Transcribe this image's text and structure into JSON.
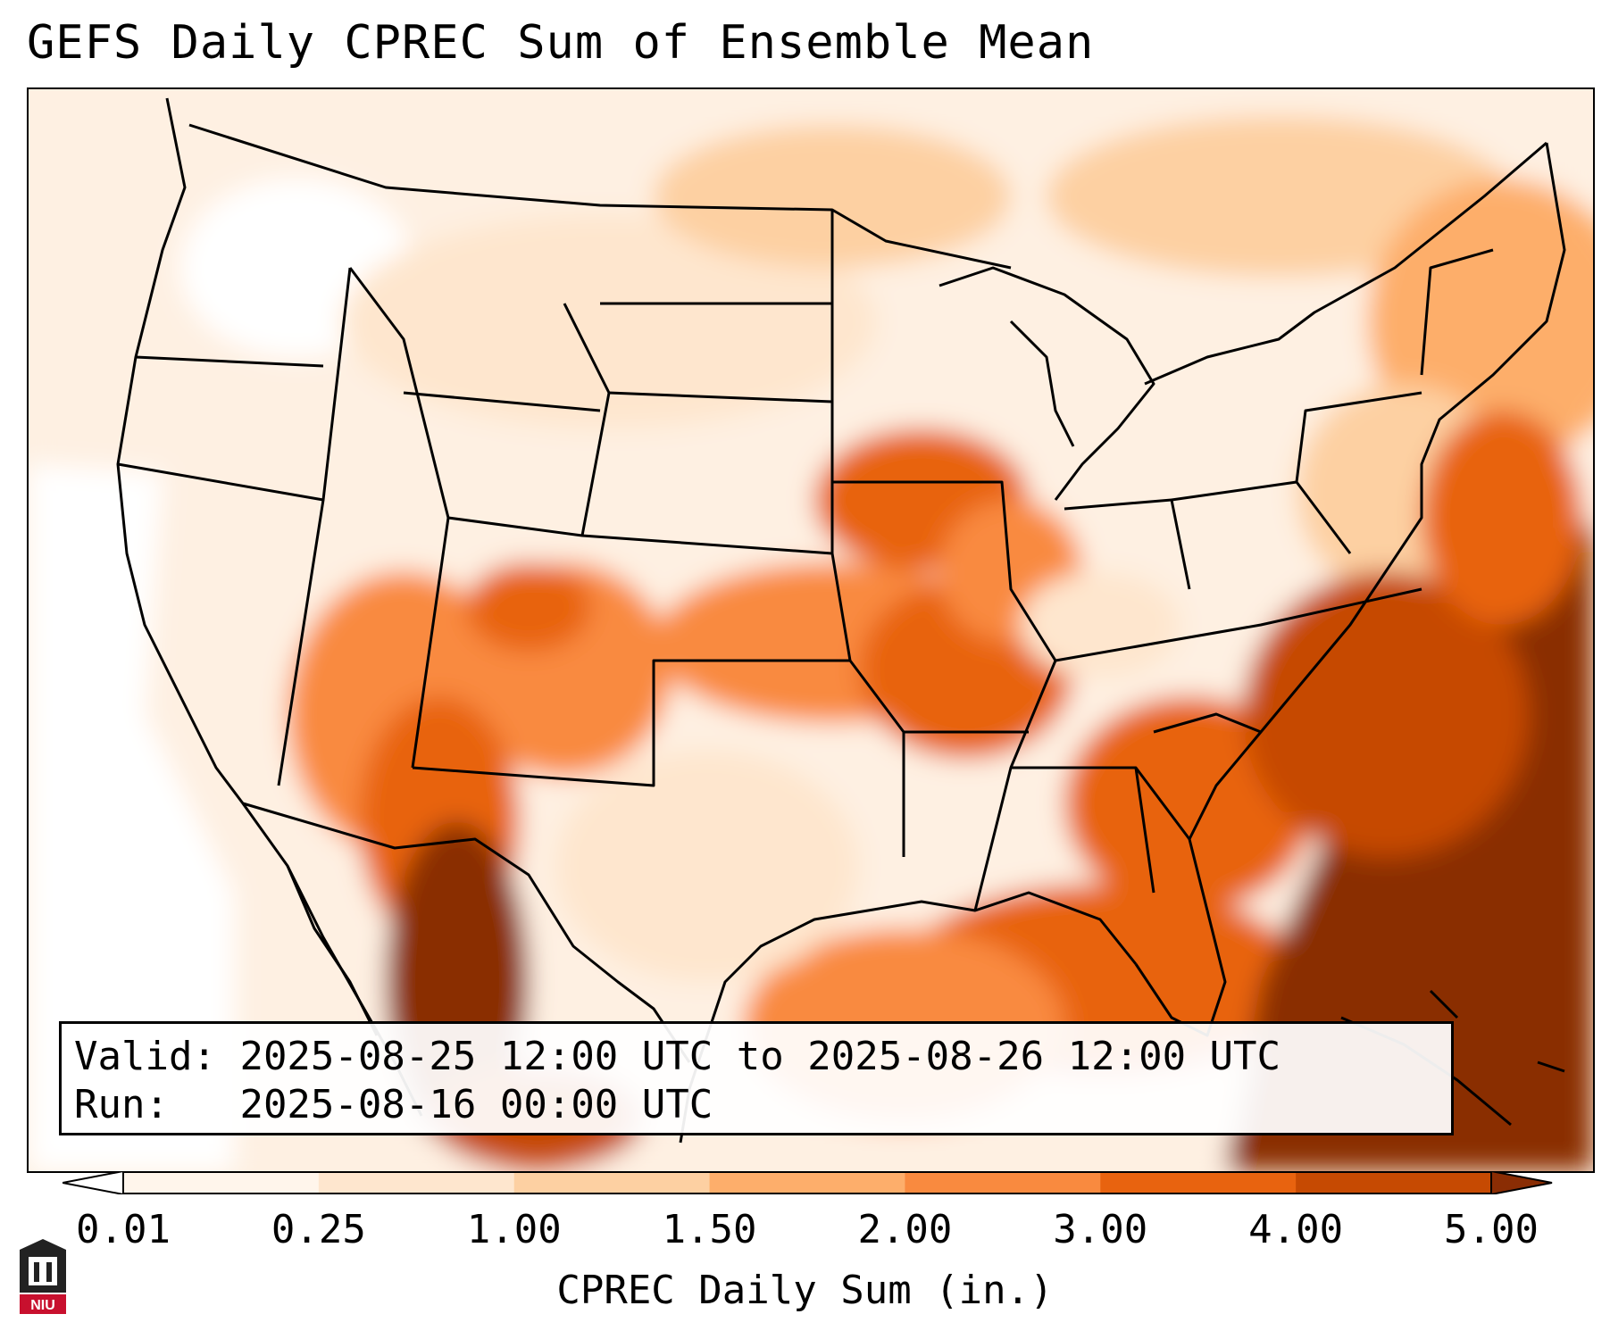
{
  "title": "GEFS Daily CPREC Sum of Ensemble Mean",
  "map": {
    "region": "Contiguous United States",
    "variable": "CPREC Daily Sum",
    "units": "in."
  },
  "info": {
    "valid_label": "Valid:",
    "valid_value": "2025-08-25 12:00 UTC to 2025-08-26 12:00 UTC",
    "run_label": "Run:",
    "run_value": "2025-08-16 00:00 UTC"
  },
  "colorbar": {
    "label": "CPREC Daily Sum (in.)",
    "ticks": [
      "0.01",
      "0.25",
      "1.00",
      "1.50",
      "2.00",
      "3.00",
      "4.00",
      "5.00"
    ],
    "colors": [
      "#fff5eb",
      "#fee6ce",
      "#fdd0a2",
      "#fdae6b",
      "#f98a3f",
      "#e8630f",
      "#c64a02",
      "#8a2d04"
    ],
    "under_color": "#ffffff",
    "over_color": "#8a2d04"
  },
  "logo": {
    "name": "niu-logo",
    "text": "NIU"
  }
}
